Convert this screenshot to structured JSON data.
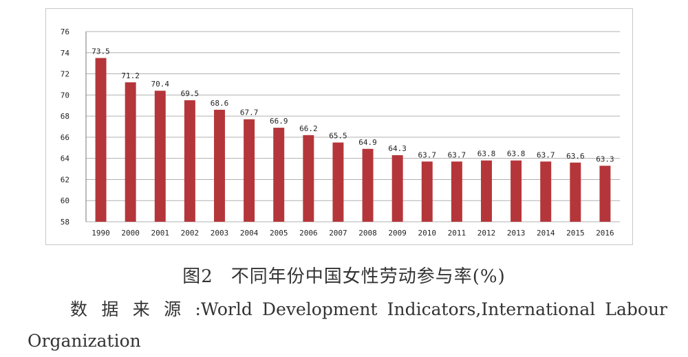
{
  "chart_data": {
    "type": "bar",
    "categories": [
      "1990",
      "2000",
      "2001",
      "2002",
      "2003",
      "2004",
      "2005",
      "2006",
      "2007",
      "2008",
      "2009",
      "2010",
      "2011",
      "2012",
      "2013",
      "2014",
      "2015",
      "2016"
    ],
    "values": [
      73.5,
      71.2,
      70.4,
      69.5,
      68.6,
      67.7,
      66.9,
      66.2,
      65.5,
      64.9,
      64.3,
      63.7,
      63.7,
      63.8,
      63.8,
      63.7,
      63.6,
      63.3
    ],
    "data_labels": [
      "73.5",
      "71.2",
      "70.4",
      "69.5",
      "68.6",
      "67.7",
      "66.9",
      "66.2",
      "65.5",
      "64.9",
      "64.3",
      "63.7",
      "63.7",
      "63.8",
      "63.8",
      "63.7",
      "63.6",
      "63.3"
    ],
    "ylim": [
      58,
      76
    ],
    "yticks": [
      58,
      60,
      62,
      64,
      66,
      68,
      70,
      72,
      74,
      76
    ],
    "grid": true,
    "legend": "none",
    "bar_color": "#b5363a",
    "grid_color": "#b0b0b0"
  },
  "caption": {
    "figure_number": "图2",
    "title": "不同年份中国女性劳动参与率(%)"
  },
  "source": {
    "text": "数 据 来 源 :World Development Indicators,International Labour Organization"
  }
}
